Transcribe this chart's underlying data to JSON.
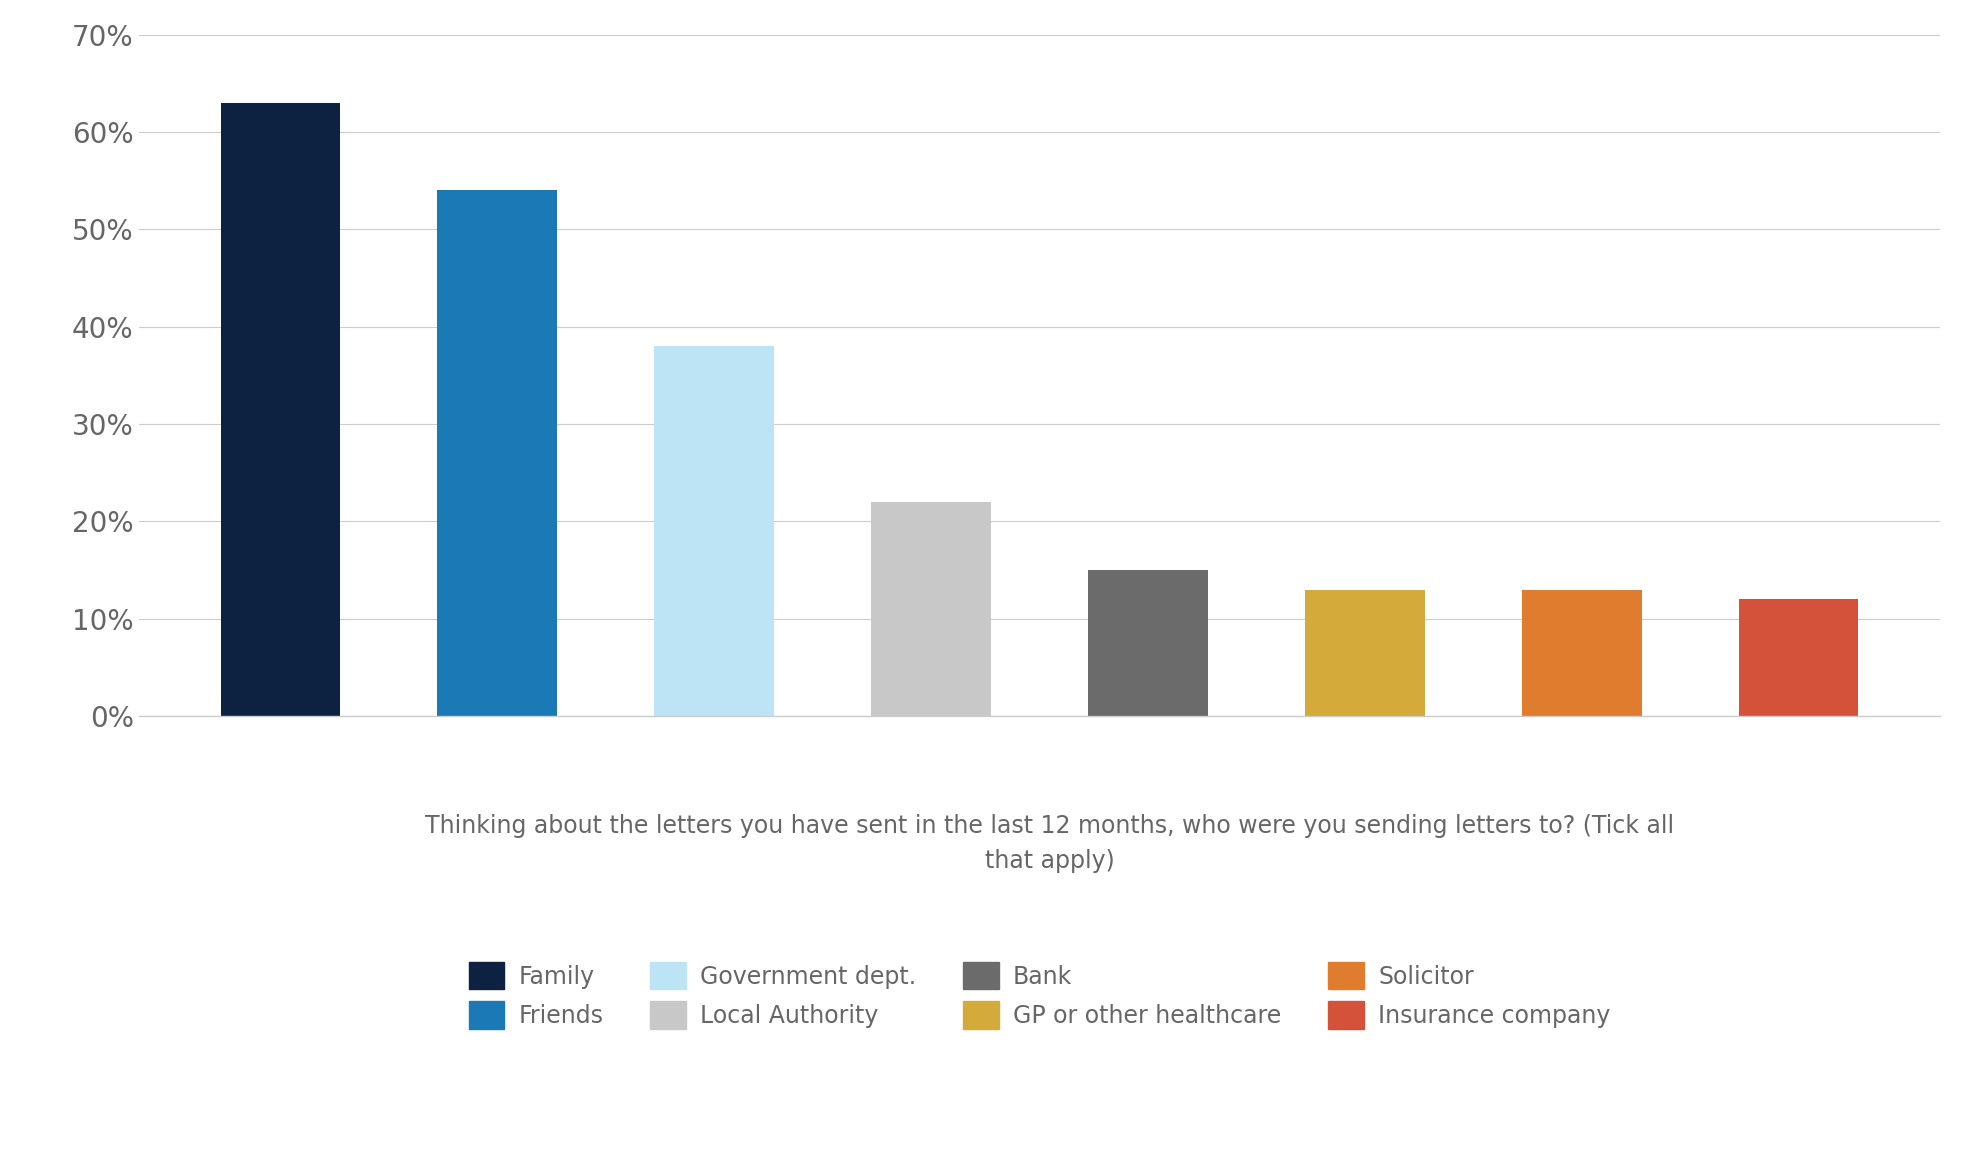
{
  "categories": [
    "Family",
    "Friends",
    "Government dept.",
    "Local Authority",
    "Bank",
    "GP or other healthcare",
    "Solicitor",
    "Insurance company"
  ],
  "values": [
    0.63,
    0.54,
    0.38,
    0.22,
    0.15,
    0.13,
    0.13,
    0.12
  ],
  "bar_colors": [
    "#0d2240",
    "#1b7ab5",
    "#bce4f5",
    "#c8c8c8",
    "#6b6b6b",
    "#d4aa3b",
    "#e07c2e",
    "#d4513a"
  ],
  "xlabel_line1": "Thinking about the letters you have sent in the last 12 months, who were you sending letters to? (Tick all",
  "xlabel_line2": "that apply)",
  "ylabel": "",
  "ylim": [
    0,
    0.7
  ],
  "yticks": [
    0.0,
    0.1,
    0.2,
    0.3,
    0.4,
    0.5,
    0.6,
    0.7
  ],
  "ytick_labels": [
    "0%",
    "10%",
    "20%",
    "30%",
    "40%",
    "50%",
    "60%",
    "70%"
  ],
  "background_color": "#ffffff",
  "grid_color": "#cccccc",
  "legend_row1": [
    "Family",
    "Friends",
    "Government dept.",
    "Local Authority"
  ],
  "legend_row2": [
    "Bank",
    "GP or other healthcare",
    "Solicitor",
    "Insurance company"
  ],
  "legend_colors": [
    "#0d2240",
    "#1b7ab5",
    "#bce4f5",
    "#c8c8c8",
    "#6b6b6b",
    "#d4aa3b",
    "#e07c2e",
    "#d4513a"
  ],
  "bar_width": 0.55,
  "label_fontsize": 17,
  "tick_fontsize": 20,
  "legend_fontsize": 17,
  "text_color": "#666666"
}
